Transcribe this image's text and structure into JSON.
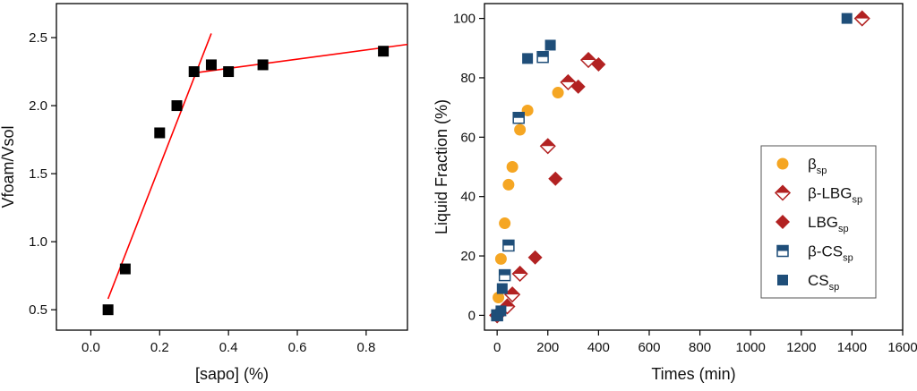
{
  "chart_data": [
    {
      "type": "scatter",
      "xlabel": "[sapo] (%)",
      "ylabel": "Vfoam/Vsol",
      "xlim": [
        -0.1,
        0.92
      ],
      "ylim": [
        0.35,
        2.75
      ],
      "xticks": [
        "0.0",
        "0.2",
        "0.4",
        "0.6",
        "0.8"
      ],
      "yticks": [
        "0.5",
        "1.0",
        "1.5",
        "2.0",
        "2.5"
      ],
      "series": [
        {
          "name": "data",
          "marker": "square",
          "color": "#000000",
          "x": [
            0.05,
            0.1,
            0.2,
            0.25,
            0.3,
            0.35,
            0.4,
            0.5,
            0.85
          ],
          "y": [
            0.5,
            0.8,
            1.8,
            2.0,
            2.25,
            2.3,
            2.25,
            2.3,
            2.4
          ]
        }
      ],
      "fit_lines": [
        {
          "name": "fit-low",
          "color": "#ff0000",
          "x": [
            0.05,
            0.35
          ],
          "y": [
            0.58,
            2.53
          ]
        },
        {
          "name": "fit-high",
          "color": "#ff0000",
          "x": [
            0.3,
            0.92
          ],
          "y": [
            2.24,
            2.45
          ]
        }
      ]
    },
    {
      "type": "scatter",
      "xlabel": "Times (min)",
      "ylabel": "Liquid Fraction (%)",
      "xlim": [
        -50,
        1600
      ],
      "ylim": [
        -5,
        105
      ],
      "xticks": [
        "0",
        "200",
        "400",
        "600",
        "800",
        "1000",
        "1200",
        "1400",
        "1600"
      ],
      "yticks": [
        "0",
        "20",
        "40",
        "60",
        "80",
        "100"
      ],
      "legend": {
        "position": "right"
      },
      "series": [
        {
          "name": "β",
          "sub": "sp",
          "marker": "circle",
          "color": "#f5a623",
          "x": [
            5,
            15,
            30,
            45,
            60,
            90,
            120,
            240,
            1440
          ],
          "y": [
            6,
            19,
            31,
            44,
            50,
            62.5,
            69,
            75,
            100
          ]
        },
        {
          "name": "β-LBG",
          "sub": "sp",
          "marker": "half-diamond",
          "color": "#b22222",
          "x": [
            0,
            40,
            60,
            90,
            200,
            280,
            360,
            1440
          ],
          "y": [
            0,
            3,
            7,
            14,
            57,
            78.5,
            86,
            100
          ]
        },
        {
          "name": "LBG",
          "sub": "sp",
          "marker": "diamond",
          "color": "#b22222",
          "x": [
            150,
            230,
            320,
            400
          ],
          "y": [
            19.5,
            46,
            77,
            84.5
          ]
        },
        {
          "name": "β-CS",
          "sub": "sp",
          "marker": "half-square",
          "color": "#1f4e79",
          "x": [
            0,
            30,
            45,
            85,
            180
          ],
          "y": [
            0,
            13.5,
            23.5,
            66.5,
            87
          ]
        },
        {
          "name": "CS",
          "sub": "sp",
          "marker": "square",
          "color": "#1f4e79",
          "x": [
            0,
            15,
            20,
            120,
            210,
            1380
          ],
          "y": [
            0,
            1.5,
            9,
            86.5,
            91,
            100
          ]
        }
      ]
    }
  ]
}
